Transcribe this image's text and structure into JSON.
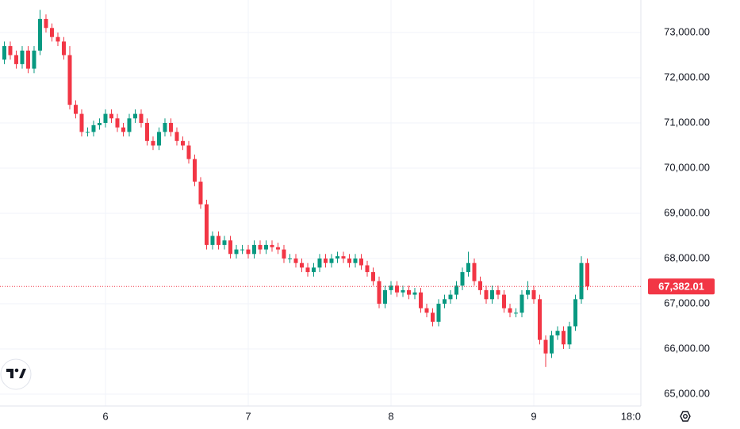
{
  "chart_data": {
    "type": "candlestick",
    "up_color": "#089981",
    "down_color": "#f23645",
    "grid": true,
    "x": [
      -17,
      -16,
      -15,
      -14,
      -13,
      -12,
      -11,
      -10,
      -9,
      -8,
      -7,
      -6,
      -5,
      -4,
      -3,
      -2,
      -1,
      0,
      1,
      2,
      3,
      4,
      5,
      6,
      7,
      8,
      9,
      10,
      11,
      12,
      13,
      14,
      15,
      16,
      17,
      18,
      19,
      20,
      21,
      22,
      23,
      24,
      25,
      26,
      27,
      28,
      29,
      30,
      31,
      32,
      33,
      34,
      35,
      36,
      37,
      38,
      39,
      40,
      41,
      42,
      43,
      44,
      45,
      46,
      47,
      48,
      49,
      50,
      51,
      52,
      53,
      54,
      55,
      56,
      57,
      58,
      59,
      60,
      61,
      62,
      63,
      64,
      65,
      66,
      67,
      68,
      69,
      70,
      71,
      72,
      73,
      74,
      75,
      76,
      77,
      78,
      79,
      80,
      81
    ],
    "open": [
      72400,
      72700,
      72500,
      72300,
      72600,
      72200,
      72600,
      73300,
      73100,
      72900,
      72800,
      72500,
      71400,
      71200,
      70800,
      70800,
      70950,
      71000,
      71200,
      71100,
      70900,
      70800,
      71100,
      71200,
      71000,
      70600,
      70500,
      70800,
      71000,
      70800,
      70600,
      70500,
      70200,
      69700,
      69200,
      68300,
      68500,
      68300,
      68400,
      68100,
      68200,
      68200,
      68100,
      68300,
      68200,
      68300,
      68250,
      68200,
      68000,
      68000,
      67900,
      67800,
      67700,
      67800,
      68000,
      67900,
      68000,
      68050,
      68000,
      67900,
      68000,
      67850,
      67700,
      67500,
      67000,
      67300,
      67400,
      67250,
      67300,
      67200,
      67250,
      66900,
      66800,
      66600,
      67000,
      67100,
      67200,
      67400,
      67700,
      67900,
      67500,
      67300,
      67100,
      67300,
      67200,
      66900,
      66800,
      66800,
      67200,
      67300,
      67100,
      66200,
      65900,
      66300,
      66400,
      66100,
      66500,
      67100,
      67900
    ],
    "high": [
      72800,
      72800,
      72600,
      72700,
      72700,
      72700,
      73500,
      73400,
      73200,
      73000,
      72900,
      72700,
      71500,
      71300,
      70900,
      71050,
      71100,
      71300,
      71300,
      71200,
      71000,
      71200,
      71300,
      71300,
      71100,
      70700,
      70900,
      71100,
      71100,
      70900,
      70700,
      70600,
      70300,
      69800,
      69300,
      68600,
      68600,
      68500,
      68500,
      68300,
      68300,
      68300,
      68400,
      68400,
      68400,
      68400,
      68350,
      68300,
      68100,
      68100,
      68000,
      67900,
      67900,
      68100,
      68100,
      68100,
      68150,
      68150,
      68100,
      68100,
      68100,
      67950,
      67800,
      67600,
      67400,
      67500,
      67500,
      67400,
      67400,
      67350,
      67350,
      67000,
      66900,
      67100,
      67200,
      67300,
      67500,
      67800,
      68150,
      68000,
      67600,
      67400,
      67400,
      67400,
      67300,
      67000,
      66900,
      67300,
      67500,
      67400,
      67200,
      66300,
      66400,
      66500,
      66500,
      66600,
      67200,
      68050,
      68000
    ],
    "low": [
      72300,
      72400,
      72200,
      72200,
      72100,
      72100,
      72500,
      73000,
      72800,
      72700,
      72400,
      71300,
      71100,
      70700,
      70700,
      70700,
      70850,
      70900,
      71000,
      70800,
      70700,
      70700,
      71000,
      70900,
      70500,
      70400,
      70400,
      70700,
      70700,
      70500,
      70400,
      70100,
      69600,
      69100,
      68200,
      68200,
      68200,
      68200,
      68000,
      68000,
      68100,
      68000,
      68000,
      68100,
      68100,
      68150,
      68100,
      67900,
      67900,
      67800,
      67700,
      67600,
      67600,
      67700,
      67800,
      67800,
      67900,
      67900,
      67800,
      67800,
      67750,
      67600,
      67400,
      66900,
      66900,
      67200,
      67150,
      67150,
      67100,
      67100,
      66800,
      66700,
      66500,
      66500,
      66900,
      67000,
      67100,
      67300,
      67600,
      67400,
      67200,
      67000,
      67000,
      67100,
      66800,
      66700,
      66700,
      66700,
      67100,
      67000,
      66100,
      65600,
      65800,
      66200,
      66000,
      66000,
      66400,
      67000,
      67300
    ],
    "close": [
      72700,
      72500,
      72300,
      72600,
      72200,
      72600,
      73300,
      73100,
      72900,
      72800,
      72500,
      71400,
      71200,
      70800,
      70800,
      70950,
      71000,
      71200,
      71100,
      70900,
      70800,
      71100,
      71200,
      71000,
      70600,
      70500,
      70800,
      71000,
      70800,
      70600,
      70500,
      70200,
      69700,
      69200,
      68300,
      68500,
      68300,
      68400,
      68100,
      68200,
      68200,
      68100,
      68300,
      68200,
      68300,
      68250,
      68200,
      68000,
      68000,
      67900,
      67800,
      67700,
      67800,
      68000,
      67900,
      68000,
      68050,
      68000,
      67900,
      68000,
      67850,
      67700,
      67500,
      67000,
      67300,
      67400,
      67250,
      67300,
      67200,
      67250,
      66900,
      66800,
      66600,
      67000,
      67100,
      67200,
      67400,
      67700,
      67900,
      67500,
      67300,
      67100,
      67300,
      67200,
      66900,
      66800,
      66800,
      67200,
      67300,
      67100,
      66200,
      65900,
      66300,
      66400,
      66100,
      66500,
      67100,
      67900,
      67382
    ],
    "xlim": [
      -17.73,
      90
    ],
    "xticks": [
      {
        "value": 0,
        "label": "6"
      },
      {
        "value": 24,
        "label": "7"
      },
      {
        "value": 48,
        "label": "8"
      },
      {
        "value": 72,
        "label": "9"
      },
      {
        "value": 90,
        "label": "18:0"
      }
    ],
    "ylim": [
      64737,
      73719
    ],
    "yticks": [
      {
        "value": 65000,
        "label": "65,000.00"
      },
      {
        "value": 66000,
        "label": "66,000.00"
      },
      {
        "value": 67000,
        "label": "67,000.00"
      },
      {
        "value": 68000,
        "label": "68,000.00"
      },
      {
        "value": 69000,
        "label": "69,000.00"
      },
      {
        "value": 70000,
        "label": "70,000.00"
      },
      {
        "value": 71000,
        "label": "71,000.00"
      },
      {
        "value": 72000,
        "label": "72,000.00"
      },
      {
        "value": 73000,
        "label": "73,000.00"
      }
    ],
    "last_price": {
      "value": 67382.01,
      "label": "67,382.01"
    }
  }
}
